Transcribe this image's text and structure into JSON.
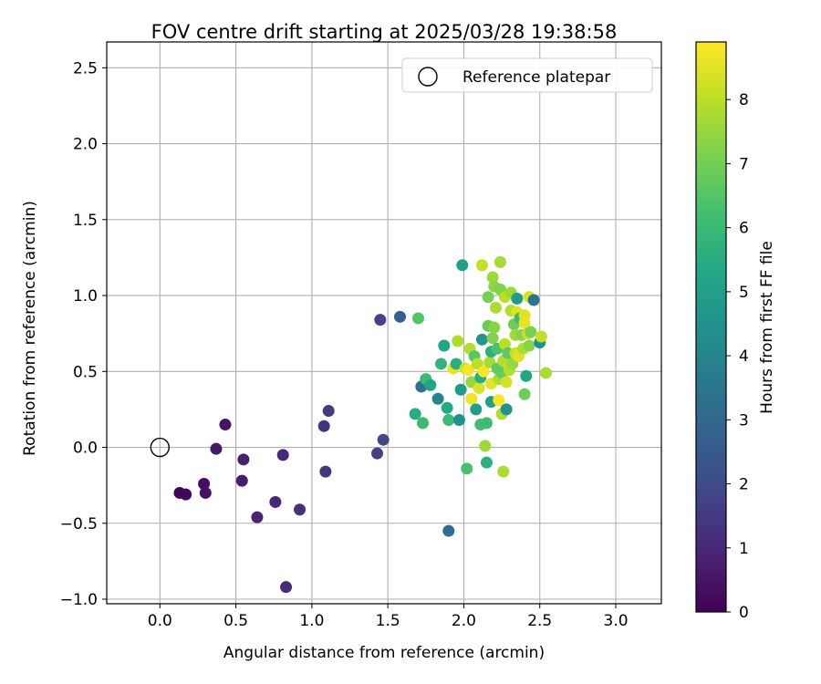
{
  "chart_data": {
    "type": "scatter",
    "title": "FOV centre drift starting at 2025/03/28 19:38:58",
    "xlabel": "Angular distance from reference (arcmin)",
    "ylabel": "Rotation from reference (arcmin)",
    "xlim": [
      -0.35,
      3.3
    ],
    "ylim": [
      -1.03,
      2.67
    ],
    "xticks": [
      0.0,
      0.5,
      1.0,
      1.5,
      2.0,
      2.5,
      3.0
    ],
    "xtick_labels": [
      "0.0",
      "0.5",
      "1.0",
      "1.5",
      "2.0",
      "2.5",
      "3.0"
    ],
    "yticks": [
      -1.0,
      -0.5,
      0.0,
      0.5,
      1.0,
      1.5,
      2.0,
      2.5
    ],
    "ytick_labels": [
      "−1.0",
      "−0.5",
      "0.0",
      "0.5",
      "1.0",
      "1.5",
      "2.0",
      "2.5"
    ],
    "grid": true,
    "legend": {
      "position": "top-right",
      "entries": [
        "Reference platepar"
      ]
    },
    "reference_point": {
      "x": 0.0,
      "y": 0.0
    },
    "colorbar": {
      "label": "Hours from first FF file",
      "min": 0,
      "max": 8.9,
      "colormap": "viridis",
      "ticks": [
        0,
        1,
        2,
        3,
        4,
        5,
        6,
        7,
        8
      ],
      "tick_labels": [
        "0",
        "1",
        "2",
        "3",
        "4",
        "5",
        "6",
        "7",
        "8"
      ]
    },
    "colors": {
      "viridis": [
        "#440154",
        "#482475",
        "#414487",
        "#355f8d",
        "#2a788e",
        "#21918c",
        "#22a884",
        "#44bf70",
        "#7ad151",
        "#bddf26",
        "#fde725"
      ],
      "grid": "#b0b0b0"
    },
    "points": [
      {
        "x": 0.13,
        "y": -0.3,
        "c": 0.05
      },
      {
        "x": 0.17,
        "y": -0.31,
        "c": 0.15
      },
      {
        "x": 0.29,
        "y": -0.24,
        "c": 0.3
      },
      {
        "x": 0.3,
        "y": -0.3,
        "c": 0.4
      },
      {
        "x": 0.37,
        "y": -0.01,
        "c": 0.6
      },
      {
        "x": 0.43,
        "y": 0.15,
        "c": 0.5
      },
      {
        "x": 0.54,
        "y": -0.22,
        "c": 0.7
      },
      {
        "x": 0.55,
        "y": -0.08,
        "c": 0.8
      },
      {
        "x": 0.64,
        "y": -0.46,
        "c": 0.9
      },
      {
        "x": 0.76,
        "y": -0.36,
        "c": 1.0
      },
      {
        "x": 0.81,
        "y": -0.05,
        "c": 1.0
      },
      {
        "x": 0.83,
        "y": -0.92,
        "c": 1.1
      },
      {
        "x": 0.92,
        "y": -0.41,
        "c": 1.2
      },
      {
        "x": 1.08,
        "y": 0.14,
        "c": 1.3
      },
      {
        "x": 1.09,
        "y": -0.16,
        "c": 1.4
      },
      {
        "x": 1.11,
        "y": 0.24,
        "c": 1.5
      },
      {
        "x": 1.43,
        "y": -0.04,
        "c": 1.7
      },
      {
        "x": 1.45,
        "y": 0.84,
        "c": 1.8
      },
      {
        "x": 1.47,
        "y": 0.05,
        "c": 1.9
      },
      {
        "x": 1.58,
        "y": 0.86,
        "c": 2.7
      },
      {
        "x": 1.7,
        "y": 0.85,
        "c": 6.5
      },
      {
        "x": 1.68,
        "y": 0.22,
        "c": 5.5
      },
      {
        "x": 1.72,
        "y": 0.4,
        "c": 3.3
      },
      {
        "x": 1.73,
        "y": 0.16,
        "c": 6.0
      },
      {
        "x": 1.75,
        "y": 0.45,
        "c": 6.0
      },
      {
        "x": 1.78,
        "y": 0.41,
        "c": 5.2
      },
      {
        "x": 1.83,
        "y": 0.32,
        "c": 4.0
      },
      {
        "x": 1.85,
        "y": 0.55,
        "c": 5.8
      },
      {
        "x": 1.87,
        "y": 0.67,
        "c": 5.3
      },
      {
        "x": 1.89,
        "y": 0.26,
        "c": 5.4
      },
      {
        "x": 1.9,
        "y": 0.18,
        "c": 6.0
      },
      {
        "x": 1.9,
        "y": -0.55,
        "c": 3.2
      },
      {
        "x": 1.93,
        "y": 0.52,
        "c": 8.6
      },
      {
        "x": 1.95,
        "y": 0.55,
        "c": 5.6
      },
      {
        "x": 1.96,
        "y": 0.7,
        "c": 7.8
      },
      {
        "x": 1.97,
        "y": 0.18,
        "c": 4.5
      },
      {
        "x": 1.98,
        "y": 0.38,
        "c": 4.8
      },
      {
        "x": 1.99,
        "y": 1.2,
        "c": 5.0
      },
      {
        "x": 2.01,
        "y": 0.52,
        "c": 8.2
      },
      {
        "x": 2.02,
        "y": -0.14,
        "c": 6.3
      },
      {
        "x": 2.03,
        "y": 0.51,
        "c": 8.8
      },
      {
        "x": 2.04,
        "y": 0.65,
        "c": 7.9
      },
      {
        "x": 2.05,
        "y": 0.43,
        "c": 7.5
      },
      {
        "x": 2.05,
        "y": 0.32,
        "c": 8.7
      },
      {
        "x": 2.07,
        "y": 0.6,
        "c": 6.6
      },
      {
        "x": 2.08,
        "y": 0.25,
        "c": 4.9
      },
      {
        "x": 2.09,
        "y": 0.55,
        "c": 8.0
      },
      {
        "x": 2.1,
        "y": 0.39,
        "c": 8.4
      },
      {
        "x": 2.11,
        "y": 0.46,
        "c": 5.5
      },
      {
        "x": 2.11,
        "y": 0.15,
        "c": 6.2
      },
      {
        "x": 2.12,
        "y": 1.2,
        "c": 8.1
      },
      {
        "x": 2.12,
        "y": 0.71,
        "c": 4.7
      },
      {
        "x": 2.13,
        "y": 0.5,
        "c": 8.8
      },
      {
        "x": 2.14,
        "y": 0.01,
        "c": 7.6
      },
      {
        "x": 2.15,
        "y": 0.16,
        "c": 6.1
      },
      {
        "x": 2.15,
        "y": -0.1,
        "c": 5.6
      },
      {
        "x": 2.16,
        "y": 0.8,
        "c": 6.8
      },
      {
        "x": 2.16,
        "y": 0.99,
        "c": 7.0
      },
      {
        "x": 2.17,
        "y": 0.56,
        "c": 7.7
      },
      {
        "x": 2.18,
        "y": 0.42,
        "c": 8.6
      },
      {
        "x": 2.18,
        "y": 0.63,
        "c": 5.7
      },
      {
        "x": 2.18,
        "y": 0.3,
        "c": 5.0
      },
      {
        "x": 2.19,
        "y": 1.12,
        "c": 7.6
      },
      {
        "x": 2.19,
        "y": 0.72,
        "c": 7.2
      },
      {
        "x": 2.2,
        "y": 1.06,
        "c": 7.4
      },
      {
        "x": 2.2,
        "y": 0.79,
        "c": 7.3
      },
      {
        "x": 2.21,
        "y": 0.92,
        "c": 7.8
      },
      {
        "x": 2.22,
        "y": 0.52,
        "c": 6.7
      },
      {
        "x": 2.22,
        "y": 0.65,
        "c": 6.4
      },
      {
        "x": 2.23,
        "y": 0.31,
        "c": 8.8
      },
      {
        "x": 2.23,
        "y": 0.45,
        "c": 7.8
      },
      {
        "x": 2.24,
        "y": 1.22,
        "c": 7.7
      },
      {
        "x": 2.24,
        "y": 1.04,
        "c": 7.2
      },
      {
        "x": 2.25,
        "y": 0.22,
        "c": 7.8
      },
      {
        "x": 2.25,
        "y": 0.49,
        "c": 6.8
      },
      {
        "x": 2.26,
        "y": -0.16,
        "c": 7.8
      },
      {
        "x": 2.26,
        "y": 0.57,
        "c": 7.9
      },
      {
        "x": 2.27,
        "y": 0.99,
        "c": 8.0
      },
      {
        "x": 2.27,
        "y": 0.68,
        "c": 8.0
      },
      {
        "x": 2.28,
        "y": 0.43,
        "c": 8.3
      },
      {
        "x": 2.28,
        "y": 0.25,
        "c": 4.5
      },
      {
        "x": 2.29,
        "y": 0.62,
        "c": 6.7
      },
      {
        "x": 2.3,
        "y": 0.51,
        "c": 7.9
      },
      {
        "x": 2.31,
        "y": 0.9,
        "c": 7.9
      },
      {
        "x": 2.31,
        "y": 1.02,
        "c": 7.6
      },
      {
        "x": 2.32,
        "y": 0.55,
        "c": 7.5
      },
      {
        "x": 2.33,
        "y": 0.81,
        "c": 6.9
      },
      {
        "x": 2.34,
        "y": 0.62,
        "c": 8.2
      },
      {
        "x": 2.34,
        "y": 0.74,
        "c": 7.6
      },
      {
        "x": 2.35,
        "y": 0.98,
        "c": 4.8
      },
      {
        "x": 2.35,
        "y": 0.89,
        "c": 8.5
      },
      {
        "x": 2.36,
        "y": 0.6,
        "c": 8.5
      },
      {
        "x": 2.37,
        "y": 0.85,
        "c": 6.0
      },
      {
        "x": 2.38,
        "y": 0.74,
        "c": 7.3
      },
      {
        "x": 2.39,
        "y": 0.65,
        "c": 7.8
      },
      {
        "x": 2.4,
        "y": 0.87,
        "c": 8.5
      },
      {
        "x": 2.4,
        "y": 0.82,
        "c": 8.6
      },
      {
        "x": 2.4,
        "y": 0.35,
        "c": 6.9
      },
      {
        "x": 2.41,
        "y": 0.47,
        "c": 5.3
      },
      {
        "x": 2.42,
        "y": 0.75,
        "c": 8.2
      },
      {
        "x": 2.43,
        "y": 0.67,
        "c": 7.3
      },
      {
        "x": 2.43,
        "y": 0.99,
        "c": 8.4
      },
      {
        "x": 2.44,
        "y": 0.76,
        "c": 7.1
      },
      {
        "x": 2.46,
        "y": 0.97,
        "c": 3.4
      },
      {
        "x": 2.5,
        "y": 0.69,
        "c": 4.4
      },
      {
        "x": 2.51,
        "y": 0.73,
        "c": 8.1
      },
      {
        "x": 2.54,
        "y": 0.49,
        "c": 7.8
      }
    ]
  }
}
